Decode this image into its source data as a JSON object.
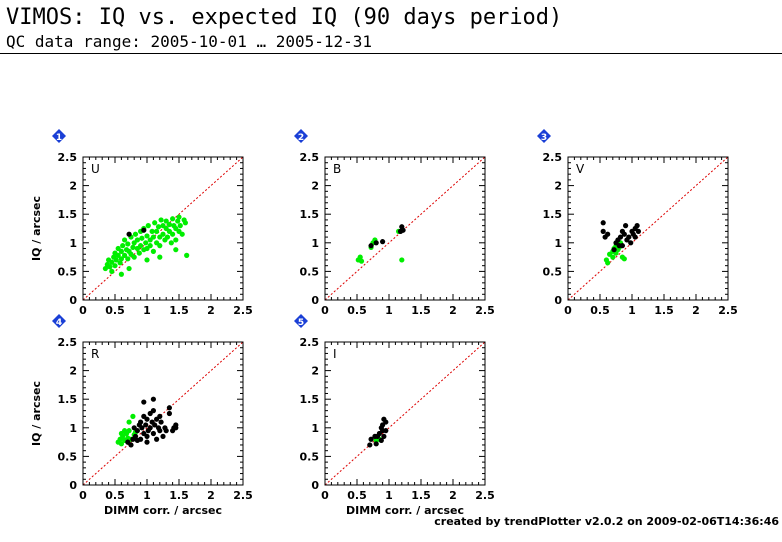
{
  "header": {
    "title": "VIMOS: IQ vs. expected IQ (90 days period)",
    "subtitle": "QC data range: 2005-10-01 … 2005-12-31"
  },
  "footer": {
    "text": "created by trendPlotter v2.0.2 on 2009-02-06T14:36:46"
  },
  "colors": {
    "qc_point": "#00ee00",
    "other_point": "#000000",
    "diagonal": "#dd0000",
    "badge": "#1a3fd6"
  },
  "chart_data": [
    {
      "type": "scatter",
      "badge": "1",
      "panel_label": "U",
      "xlabel": "",
      "ylabel": "IQ / arcsec",
      "xlim": [
        0,
        2.5
      ],
      "ylim": [
        0,
        2.5
      ],
      "xticks": [
        "0",
        "0.5",
        "1",
        "1.5",
        "2",
        "2.5"
      ],
      "yticks": [
        "0",
        "0.5",
        "1",
        "1.5",
        "2",
        "2.5"
      ],
      "series": [
        {
          "color": "green",
          "points": [
            [
              0.35,
              0.55
            ],
            [
              0.38,
              0.62
            ],
            [
              0.4,
              0.7
            ],
            [
              0.42,
              0.58
            ],
            [
              0.45,
              0.66
            ],
            [
              0.48,
              0.75
            ],
            [
              0.5,
              0.6
            ],
            [
              0.5,
              0.82
            ],
            [
              0.52,
              0.7
            ],
            [
              0.55,
              0.78
            ],
            [
              0.55,
              0.9
            ],
            [
              0.58,
              0.65
            ],
            [
              0.6,
              0.72
            ],
            [
              0.6,
              0.85
            ],
            [
              0.62,
              0.95
            ],
            [
              0.65,
              0.78
            ],
            [
              0.65,
              1.05
            ],
            [
              0.68,
              0.88
            ],
            [
              0.7,
              0.72
            ],
            [
              0.7,
              0.98
            ],
            [
              0.72,
              0.85
            ],
            [
              0.75,
              1.1
            ],
            [
              0.75,
              0.8
            ],
            [
              0.78,
              0.92
            ],
            [
              0.8,
              1.0
            ],
            [
              0.8,
              0.75
            ],
            [
              0.82,
              1.15
            ],
            [
              0.85,
              0.9
            ],
            [
              0.85,
              1.05
            ],
            [
              0.88,
              0.82
            ],
            [
              0.9,
              1.2
            ],
            [
              0.9,
              0.95
            ],
            [
              0.92,
              1.08
            ],
            [
              0.95,
              0.88
            ],
            [
              0.95,
              1.25
            ],
            [
              0.98,
              1.0
            ],
            [
              1.0,
              1.12
            ],
            [
              1.0,
              0.9
            ],
            [
              1.02,
              1.3
            ],
            [
              1.05,
              1.05
            ],
            [
              1.05,
              0.95
            ],
            [
              1.08,
              1.2
            ],
            [
              1.1,
              1.1
            ],
            [
              1.1,
              0.85
            ],
            [
              1.12,
              1.35
            ],
            [
              1.15,
              1.0
            ],
            [
              1.15,
              1.2
            ],
            [
              1.18,
              1.28
            ],
            [
              1.2,
              1.1
            ],
            [
              1.2,
              0.95
            ],
            [
              1.22,
              1.4
            ],
            [
              1.25,
              1.15
            ],
            [
              1.25,
              1.3
            ],
            [
              1.28,
              1.05
            ],
            [
              1.3,
              1.25
            ],
            [
              1.3,
              1.38
            ],
            [
              1.32,
              1.1
            ],
            [
              1.35,
              1.2
            ],
            [
              1.35,
              1.32
            ],
            [
              1.38,
              1.0
            ],
            [
              1.4,
              1.42
            ],
            [
              1.4,
              1.15
            ],
            [
              1.42,
              1.3
            ],
            [
              1.45,
              1.25
            ],
            [
              1.45,
              1.05
            ],
            [
              1.48,
              1.38
            ],
            [
              1.5,
              1.45
            ],
            [
              1.5,
              1.2
            ],
            [
              1.52,
              1.3
            ],
            [
              1.55,
              1.15
            ],
            [
              1.58,
              1.4
            ],
            [
              1.6,
              1.35
            ],
            [
              1.62,
              0.78
            ],
            [
              1.45,
              0.88
            ],
            [
              0.6,
              0.45
            ],
            [
              0.72,
              0.55
            ],
            [
              0.45,
              0.5
            ],
            [
              1.0,
              0.7
            ],
            [
              1.2,
              0.75
            ]
          ]
        },
        {
          "color": "black",
          "points": [
            [
              0.72,
              1.15
            ],
            [
              0.95,
              1.22
            ]
          ]
        }
      ]
    },
    {
      "type": "scatter",
      "badge": "2",
      "panel_label": "B",
      "xlabel": "",
      "ylabel": "",
      "xlim": [
        0,
        2.5
      ],
      "ylim": [
        0,
        2.5
      ],
      "xticks": [
        "0",
        "0.5",
        "1",
        "1.5",
        "2",
        "2.5"
      ],
      "yticks": [
        "0",
        "0.5",
        "1",
        "1.5",
        "2",
        "2.5"
      ],
      "series": [
        {
          "color": "green",
          "points": [
            [
              0.52,
              0.7
            ],
            [
              0.55,
              0.75
            ],
            [
              0.57,
              0.68
            ],
            [
              0.72,
              0.92
            ],
            [
              0.75,
              1.0
            ],
            [
              0.78,
              1.05
            ],
            [
              1.2,
              0.7
            ],
            [
              1.15,
              1.2
            ]
          ]
        },
        {
          "color": "black",
          "points": [
            [
              0.72,
              0.95
            ],
            [
              0.8,
              1.0
            ],
            [
              0.9,
              1.02
            ],
            [
              1.18,
              1.2
            ],
            [
              1.2,
              1.28
            ],
            [
              1.22,
              1.22
            ]
          ]
        }
      ]
    },
    {
      "type": "scatter",
      "badge": "3",
      "panel_label": "V",
      "xlabel": "",
      "ylabel": "",
      "xlim": [
        0,
        2.5
      ],
      "ylim": [
        0,
        2.5
      ],
      "xticks": [
        "0",
        "0.5",
        "1",
        "1.5",
        "2",
        "2.5"
      ],
      "yticks": [
        "0",
        "0.5",
        "1",
        "1.5",
        "2",
        "2.5"
      ],
      "series": [
        {
          "color": "green",
          "points": [
            [
              0.6,
              0.7
            ],
            [
              0.62,
              0.65
            ],
            [
              0.65,
              0.8
            ],
            [
              0.7,
              0.85
            ],
            [
              0.72,
              0.9
            ],
            [
              0.75,
              0.95
            ],
            [
              0.78,
              0.88
            ],
            [
              0.8,
              0.92
            ],
            [
              0.82,
              1.0
            ],
            [
              0.85,
              0.75
            ],
            [
              0.88,
              0.72
            ],
            [
              0.75,
              0.82
            ],
            [
              0.7,
              0.75
            ]
          ]
        },
        {
          "color": "black",
          "points": [
            [
              0.55,
              1.35
            ],
            [
              0.55,
              1.2
            ],
            [
              0.58,
              1.1
            ],
            [
              0.62,
              1.15
            ],
            [
              0.75,
              1.0
            ],
            [
              0.78,
              1.05
            ],
            [
              0.8,
              0.95
            ],
            [
              0.82,
              1.1
            ],
            [
              0.85,
              1.2
            ],
            [
              0.88,
              1.15
            ],
            [
              0.9,
              1.3
            ],
            [
              0.92,
              1.05
            ],
            [
              0.95,
              1.1
            ],
            [
              0.98,
              1.0
            ],
            [
              1.0,
              1.2
            ],
            [
              1.02,
              1.15
            ],
            [
              1.05,
              1.25
            ],
            [
              1.05,
              1.1
            ],
            [
              1.08,
              1.3
            ],
            [
              1.1,
              1.2
            ],
            [
              0.85,
              0.95
            ],
            [
              0.72,
              0.88
            ]
          ]
        }
      ]
    },
    {
      "type": "scatter",
      "badge": "4",
      "panel_label": "R",
      "xlabel": "DIMM corr. / arcsec",
      "ylabel": "IQ / arcsec",
      "xlim": [
        0,
        2.5
      ],
      "ylim": [
        0,
        2.5
      ],
      "xticks": [
        "0",
        "0.5",
        "1",
        "1.5",
        "2",
        "2.5"
      ],
      "yticks": [
        "0",
        "0.5",
        "1",
        "1.5",
        "2",
        "2.5"
      ],
      "series": [
        {
          "color": "green",
          "points": [
            [
              0.55,
              0.75
            ],
            [
              0.58,
              0.8
            ],
            [
              0.6,
              0.72
            ],
            [
              0.62,
              0.85
            ],
            [
              0.65,
              0.78
            ],
            [
              0.68,
              0.9
            ],
            [
              0.7,
              0.82
            ],
            [
              0.72,
              0.95
            ],
            [
              0.75,
              0.8
            ],
            [
              0.78,
              1.2
            ],
            [
              0.8,
              0.88
            ],
            [
              0.82,
              0.92
            ],
            [
              0.72,
              1.1
            ],
            [
              0.65,
              0.95
            ],
            [
              0.6,
              0.9
            ]
          ]
        },
        {
          "color": "black",
          "points": [
            [
              0.7,
              0.75
            ],
            [
              0.75,
              0.7
            ],
            [
              0.78,
              0.8
            ],
            [
              0.8,
              1.0
            ],
            [
              0.82,
              0.85
            ],
            [
              0.85,
              0.95
            ],
            [
              0.88,
              1.05
            ],
            [
              0.9,
              1.1
            ],
            [
              0.9,
              0.8
            ],
            [
              0.92,
              1.0
            ],
            [
              0.95,
              1.2
            ],
            [
              0.95,
              0.9
            ],
            [
              0.98,
              1.05
            ],
            [
              1.0,
              1.15
            ],
            [
              1.0,
              0.85
            ],
            [
              1.02,
              0.95
            ],
            [
              1.05,
              1.25
            ],
            [
              1.05,
              1.0
            ],
            [
              1.08,
              1.1
            ],
            [
              1.1,
              0.9
            ],
            [
              1.1,
              1.3
            ],
            [
              1.12,
              1.05
            ],
            [
              1.15,
              1.15
            ],
            [
              1.15,
              0.8
            ],
            [
              1.18,
              1.0
            ],
            [
              1.2,
              1.2
            ],
            [
              1.2,
              0.95
            ],
            [
              1.22,
              1.1
            ],
            [
              1.25,
              0.85
            ],
            [
              1.28,
              1.0
            ],
            [
              1.3,
              0.95
            ],
            [
              1.35,
              1.35
            ],
            [
              1.35,
              1.25
            ],
            [
              1.4,
              0.95
            ],
            [
              1.42,
              1.0
            ],
            [
              1.45,
              1.05
            ],
            [
              1.45,
              1.0
            ],
            [
              0.95,
              1.45
            ],
            [
              1.1,
              1.5
            ],
            [
              1.0,
              0.75
            ],
            [
              0.85,
              0.78
            ]
          ]
        }
      ]
    },
    {
      "type": "scatter",
      "badge": "5",
      "panel_label": "I",
      "xlabel": "DIMM corr. / arcsec",
      "ylabel": "",
      "xlim": [
        0,
        2.5
      ],
      "ylim": [
        0,
        2.5
      ],
      "xticks": [
        "0",
        "0.5",
        "1",
        "1.5",
        "2",
        "2.5"
      ],
      "yticks": [
        "0",
        "0.5",
        "1",
        "1.5",
        "2",
        "2.5"
      ],
      "series": [
        {
          "color": "green",
          "points": [
            [
              0.8,
              0.78
            ],
            [
              0.85,
              0.8
            ]
          ]
        },
        {
          "color": "black",
          "points": [
            [
              0.7,
              0.7
            ],
            [
              0.72,
              0.8
            ],
            [
              0.8,
              0.72
            ],
            [
              0.82,
              0.85
            ],
            [
              0.85,
              0.9
            ],
            [
              0.88,
              1.0
            ],
            [
              0.9,
              0.95
            ],
            [
              0.9,
              1.05
            ],
            [
              0.92,
              0.85
            ],
            [
              0.95,
              1.1
            ],
            [
              0.95,
              0.95
            ],
            [
              0.88,
              0.78
            ],
            [
              0.78,
              0.85
            ],
            [
              0.92,
              1.15
            ]
          ]
        }
      ]
    }
  ]
}
